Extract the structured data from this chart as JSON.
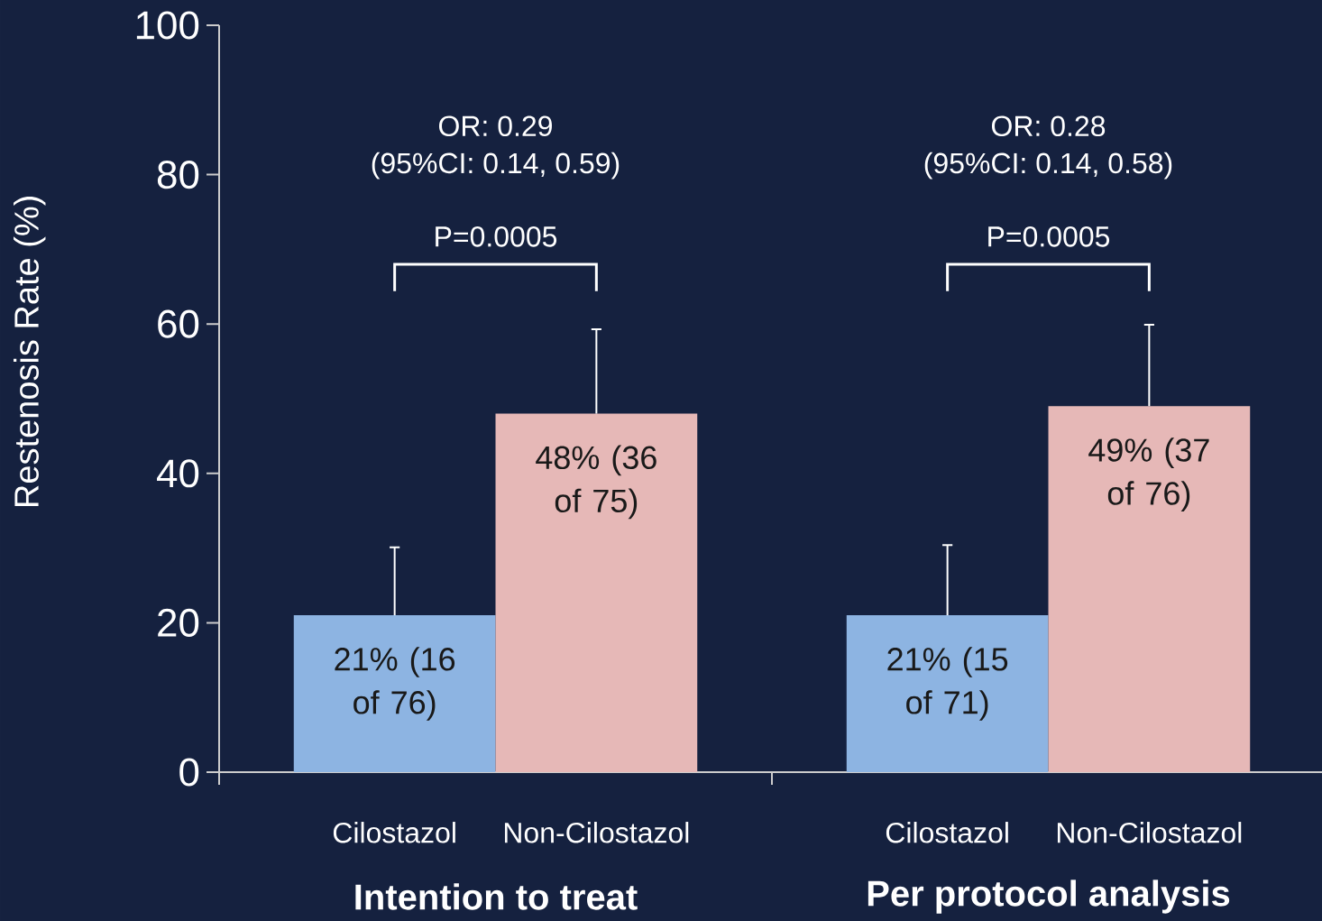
{
  "chart_data": [
    {
      "type": "bar",
      "categories": [
        "Cilostazol",
        "Non-Cilostazol"
      ],
      "values": [
        21,
        48
      ],
      "colors": [
        "#8db4e2",
        "#e6b8b7"
      ],
      "errors": [
        [
          21,
          30.1
        ],
        [
          48,
          59.3
        ]
      ],
      "value_labels": [
        "21% (16 of 76)",
        "48% (36 of 75)"
      ],
      "xlabel": "Intention to treat",
      "ylabel": "Restenosis Rate (%)",
      "ylim": [
        0,
        100
      ],
      "yticks": [
        0,
        20,
        40,
        60,
        80,
        100
      ],
      "annotations": [
        "OR: 0.29",
        "(95%CI: 0.14, 0.59)",
        "P=0.0005"
      ]
    },
    {
      "type": "bar",
      "categories": [
        "Cilostazol",
        "Non-Cilostazol"
      ],
      "values": [
        21,
        49
      ],
      "colors": [
        "#8db4e2",
        "#e6b8b7"
      ],
      "errors": [
        [
          21,
          30.4
        ],
        [
          49,
          59.9
        ]
      ],
      "value_labels": [
        "21% (15 of 71)",
        "49% (37 of 76)"
      ],
      "xlabel": "Per protocol analysis",
      "ylim": [
        0,
        100
      ],
      "yticks": [
        0,
        20,
        40,
        60,
        80,
        100
      ],
      "tick_labels": "x",
      "annotations": [
        "OR: 0.28",
        "(95%CI: 0.14, 0.58)",
        "P=0.0005"
      ]
    }
  ]
}
